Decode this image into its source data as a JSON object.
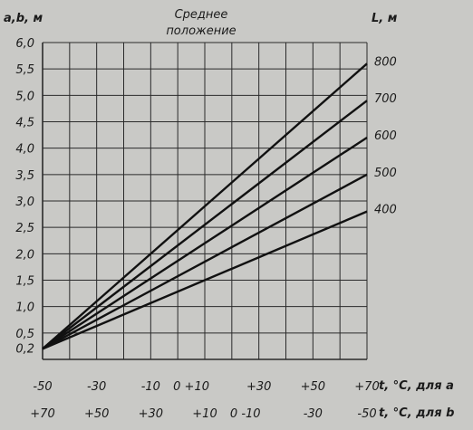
{
  "chart_data": {
    "type": "line",
    "title_lines": [
      "Среднее",
      "положение"
    ],
    "ylabel": "a,b, м",
    "legend_label": "L, м",
    "xlabel_a": "t, °C, для a",
    "xlabel_b": "t, °C, для b",
    "ylim": [
      0,
      6.0
    ],
    "yticks": [
      "6,0",
      "5,5",
      "5,0",
      "4,5",
      "4,0",
      "3,5",
      "3,0",
      "2,5",
      "2,0",
      "1,5",
      "1,0",
      "0,5",
      "0,2"
    ],
    "ytick_values": [
      6.0,
      5.5,
      5.0,
      4.5,
      4.0,
      3.5,
      3.0,
      2.5,
      2.0,
      1.5,
      1.0,
      0.5,
      0.2
    ],
    "xticks_a": [
      "-50",
      "-30",
      "-10",
      "0 +10",
      "+30",
      "+50",
      "+70"
    ],
    "xticks_b": [
      "+70",
      "+50",
      "+30",
      "+10",
      "0 -10",
      "-30",
      "-50"
    ],
    "xlim_a": [
      -50,
      70
    ],
    "x": [
      -50,
      70
    ],
    "series": [
      {
        "name": "800",
        "values": [
          0.2,
          5.6
        ]
      },
      {
        "name": "700",
        "values": [
          0.2,
          4.9
        ]
      },
      {
        "name": "600",
        "values": [
          0.2,
          4.2
        ]
      },
      {
        "name": "500",
        "values": [
          0.2,
          3.5
        ]
      },
      {
        "name": "400",
        "values": [
          0.2,
          2.8
        ]
      }
    ],
    "grid": true
  },
  "colors": {
    "background": "#c9c9c6",
    "grid": "#2a2a2a",
    "lines": "#111111"
  }
}
